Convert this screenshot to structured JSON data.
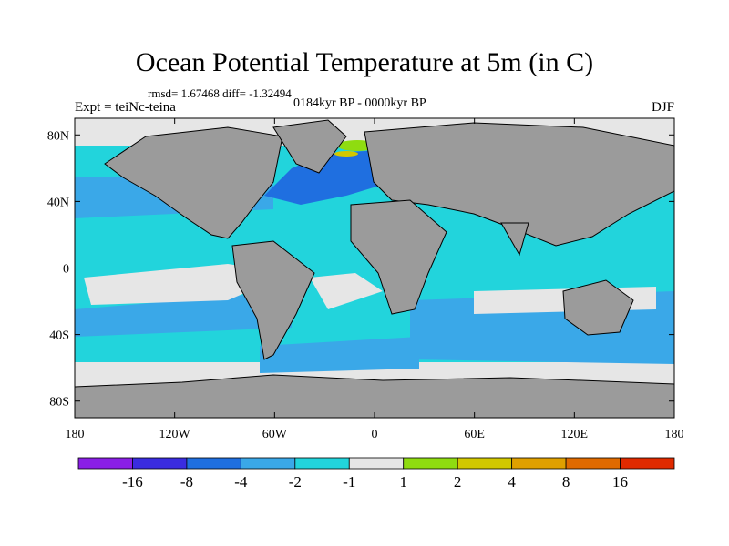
{
  "chart_data": {
    "type": "heatmap",
    "title": "Ocean Potential Temperature at 5m (in C)",
    "stats_line": "rmsd= 1.67468 diff= -1.32494",
    "left_label": "Expt = teiNc-teina",
    "center_label": "0184kyr BP - 0000kyr BP",
    "right_label": "DJF",
    "x_ticks": [
      "180",
      "120W",
      "60W",
      "0",
      "60E",
      "120E",
      "180"
    ],
    "y_ticks": [
      "80N",
      "40N",
      "0",
      "40S",
      "80S"
    ],
    "xlim": [
      -180,
      180
    ],
    "ylim": [
      -90,
      90
    ],
    "colorbar": {
      "labels": [
        "-16",
        "-8",
        "-4",
        "-2",
        "-1",
        "1",
        "2",
        "4",
        "8",
        "16"
      ],
      "colors": [
        "#8a1fe6",
        "#3a2ce0",
        "#1f6fe0",
        "#3aa8e8",
        "#22d4dc",
        "#e6e6e6",
        "#8fdc10",
        "#d2c800",
        "#e0a000",
        "#e06a00",
        "#e02a00"
      ]
    },
    "land_color": "#9b9b9b",
    "missing_color": "#e6e6e6"
  }
}
